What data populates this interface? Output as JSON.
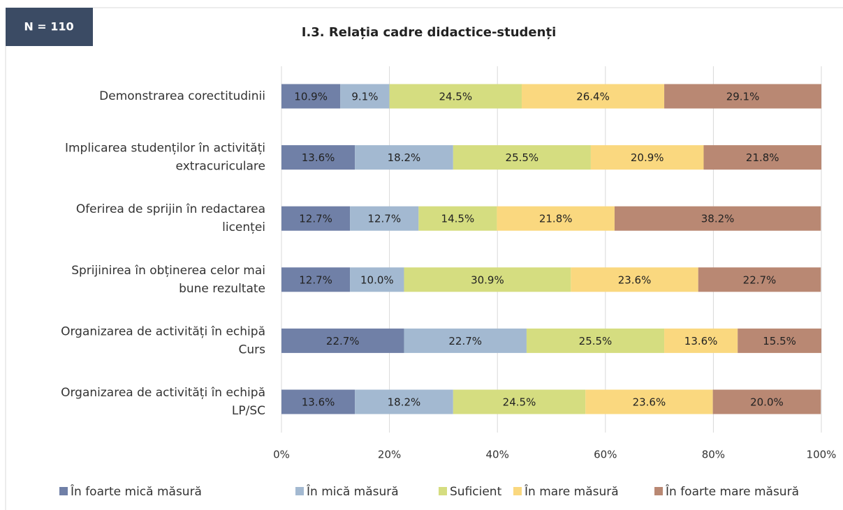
{
  "badge": "N = 110",
  "chart_data": {
    "type": "stacked_barh",
    "title": "I.3. Relația cadre didactice-studenți",
    "categories": [
      [
        "Demonstrarea corectitudinii"
      ],
      [
        "Implicarea studenților în activități",
        "extracuriculare"
      ],
      [
        "Oferirea de sprijin în redactarea",
        "licenței"
      ],
      [
        "Sprijinirea în obținerea celor mai",
        "bune rezultate"
      ],
      [
        "Organizarea de activități în echipă",
        "Curs"
      ],
      [
        "Organizarea de activități în echipă",
        "LP/SC"
      ]
    ],
    "series": [
      {
        "name": "În foarte mică măsură",
        "color": "#7080a7",
        "values": [
          10.9,
          13.6,
          12.7,
          12.7,
          22.7,
          13.6
        ],
        "value_labels": [
          "10.9%",
          "13.6%",
          "12.7%",
          "12.7%",
          "22.7%",
          "13.6%"
        ]
      },
      {
        "name": "În mică măsură",
        "color": "#a3b9d1",
        "values": [
          9.1,
          18.2,
          12.7,
          10.0,
          22.7,
          18.2
        ],
        "value_labels": [
          "9.1%",
          "18.2%",
          "12.7%",
          "10.0%",
          "22.7%",
          "18.2%"
        ]
      },
      {
        "name": "Suficient",
        "color": "#d5dd80",
        "values": [
          24.5,
          25.5,
          14.5,
          30.9,
          25.5,
          24.5
        ],
        "value_labels": [
          "24.5%",
          "25.5%",
          "14.5%",
          "30.9%",
          "25.5%",
          "24.5%"
        ]
      },
      {
        "name": "În mare măsură",
        "color": "#fad87f",
        "values": [
          26.4,
          20.9,
          21.8,
          23.6,
          13.6,
          23.6
        ],
        "value_labels": [
          "26.4%",
          "20.9%",
          "21.8%",
          "23.6%",
          "13.6%",
          "23.6%"
        ]
      },
      {
        "name": "În foarte mare măsură",
        "color": "#b98873",
        "values": [
          29.1,
          21.8,
          38.2,
          22.7,
          15.5,
          20.0
        ],
        "value_labels": [
          "29.1%",
          "21.8%",
          "38.2%",
          "22.7%",
          "15.5%",
          "20.0%"
        ]
      }
    ],
    "xlim": [
      0,
      100
    ],
    "xticks": [
      {
        "value": 0,
        "label": "0%"
      },
      {
        "value": 20,
        "label": "20%"
      },
      {
        "value": 40,
        "label": "40%"
      },
      {
        "value": 60,
        "label": "60%"
      },
      {
        "value": 80,
        "label": "80%"
      },
      {
        "value": 100,
        "label": "100%"
      }
    ],
    "grid": true,
    "legend": "bottom"
  }
}
